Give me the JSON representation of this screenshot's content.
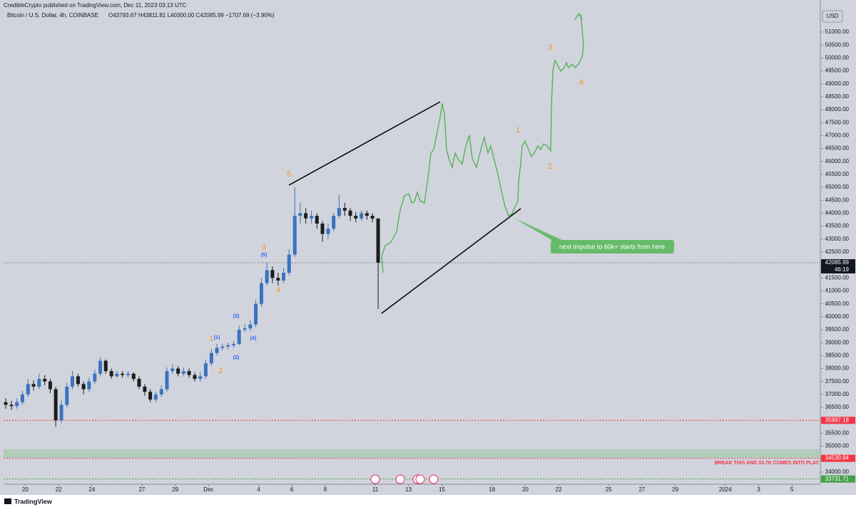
{
  "header": {
    "publisher": "CredibleCrypto published on TradingView.com, Dec 11, 2023 03:13 UTC",
    "symbol": "Bitcoin / U.S. Dollar, 4h, COINBASE",
    "ohlc": "O43793.67 H43811.81 L40300.00 C42085.99 −1707.69 (−3.90%)"
  },
  "footer": {
    "brand": "TradingView"
  },
  "chart_data": {
    "type": "candlestick",
    "currency": "USD",
    "countdown": "46:19",
    "x": [
      18.83,
      19.17,
      19.5,
      19.83,
      20.17,
      20.5,
      20.83,
      21.17,
      21.5,
      21.83,
      22.17,
      22.5,
      22.83,
      23.17,
      23.5,
      23.83,
      24.17,
      24.5,
      24.83,
      25.17,
      25.5,
      25.83,
      26.17,
      26.5,
      26.83,
      27.17,
      27.5,
      27.83,
      28.17,
      28.5,
      28.83,
      29.17,
      29.5,
      29.83,
      30.17,
      30.5,
      30.83,
      31.17,
      31.5,
      31.83,
      32.17,
      32.5,
      32.83,
      33.17,
      33.5,
      33.83,
      34.17,
      34.5,
      34.83,
      35.17,
      35.5,
      35.83,
      36.17,
      36.5,
      36.83,
      37.17,
      37.5,
      37.83,
      38.17,
      38.5,
      38.83,
      39.17,
      39.5,
      39.83,
      40.17,
      40.5,
      40.83,
      41.17
    ],
    "open": [
      36700,
      36600,
      36550,
      36700,
      37000,
      37400,
      37300,
      37600,
      37500,
      37200,
      36000,
      36600,
      37300,
      37700,
      37400,
      37200,
      37500,
      37800,
      38300,
      37900,
      37700,
      37800,
      37750,
      37800,
      37600,
      37300,
      37100,
      36800,
      37000,
      37200,
      37900,
      38000,
      37800,
      37900,
      37750,
      37600,
      37700,
      38200,
      38600,
      38800,
      38850,
      38900,
      38950,
      39500,
      39550,
      39700,
      40500,
      41300,
      41800,
      41500,
      41400,
      41700,
      42400,
      43900,
      44000,
      43800,
      43900,
      43600,
      43200,
      43400,
      43900,
      44200,
      44100,
      43900,
      43800,
      44000,
      43900,
      43793.67
    ],
    "high": [
      36850,
      36750,
      36850,
      37150,
      37600,
      37550,
      37800,
      37750,
      37600,
      37300,
      36800,
      37450,
      37900,
      37800,
      37500,
      37650,
      37950,
      38450,
      38350,
      38000,
      37900,
      37900,
      37900,
      37850,
      37700,
      37400,
      37200,
      37100,
      37350,
      38050,
      38150,
      38100,
      38050,
      38000,
      37850,
      37850,
      38350,
      38750,
      38950,
      38950,
      39000,
      39050,
      39650,
      39700,
      39850,
      40650,
      41500,
      42100,
      41950,
      41700,
      41900,
      42600,
      45000,
      44400,
      44200,
      44100,
      44000,
      43700,
      43600,
      44000,
      44700,
      44400,
      44200,
      44050,
      44100,
      44100,
      44000,
      43811.81
    ],
    "low": [
      36450,
      36400,
      36450,
      36600,
      36900,
      37150,
      37200,
      37350,
      37050,
      35750,
      35900,
      36500,
      37200,
      37300,
      37000,
      37100,
      37400,
      37700,
      37800,
      37600,
      37650,
      37650,
      37650,
      37500,
      37200,
      36950,
      36700,
      36700,
      36900,
      37100,
      37800,
      37700,
      37700,
      37650,
      37500,
      37500,
      37600,
      38100,
      38500,
      38700,
      38750,
      38800,
      38900,
      39400,
      39450,
      39600,
      40400,
      41200,
      41300,
      41200,
      41300,
      41600,
      42300,
      43600,
      43600,
      43600,
      43400,
      42900,
      43000,
      43300,
      43800,
      43900,
      43700,
      43650,
      43700,
      43750,
      43650,
      40300
    ],
    "close": [
      36600,
      36550,
      36700,
      37000,
      37400,
      37300,
      37600,
      37500,
      37200,
      36000,
      36600,
      37300,
      37700,
      37400,
      37200,
      37500,
      37800,
      38300,
      37900,
      37700,
      37800,
      37750,
      37800,
      37600,
      37300,
      37100,
      36800,
      37000,
      37200,
      37900,
      38000,
      37800,
      37900,
      37750,
      37600,
      37700,
      38200,
      38600,
      38800,
      38850,
      38900,
      38950,
      39500,
      39550,
      39700,
      40500,
      41300,
      41800,
      41500,
      41400,
      41700,
      42400,
      43900,
      44000,
      43800,
      43900,
      43600,
      43200,
      43400,
      43900,
      44200,
      44100,
      43900,
      43800,
      44000,
      43900,
      43793.67,
      42085.99
    ],
    "up_color": "#3a72c0",
    "down_color": "#1c1c1c",
    "xlim": [
      18.7,
      67.7
    ],
    "xticks": [
      20,
      22,
      24,
      27,
      29,
      {
        "value": 31,
        "label": "Dec"
      },
      {
        "value": 34,
        "label": "4"
      },
      {
        "value": 36,
        "label": "6"
      },
      {
        "value": 38,
        "label": "8"
      },
      {
        "value": 41,
        "label": "11"
      },
      {
        "value": 43,
        "label": "13"
      },
      {
        "value": 45,
        "label": "15"
      },
      {
        "value": 48,
        "label": "18"
      },
      {
        "value": 50,
        "label": "20"
      },
      {
        "value": 52,
        "label": "22"
      },
      {
        "value": 55,
        "label": "25"
      },
      {
        "value": 57,
        "label": "27"
      },
      {
        "value": 59,
        "label": "29"
      },
      {
        "value": 62,
        "label": "2024"
      },
      {
        "value": 64,
        "label": "3"
      },
      {
        "value": 66,
        "label": "5"
      }
    ],
    "ylim": [
      33530,
      52100
    ],
    "yticks": [
      {
        "value": 34000,
        "label": "34000.00"
      },
      {
        "value": 34500,
        "label": "34500.00"
      },
      {
        "value": 35000,
        "label": "35000.00"
      },
      {
        "value": 35500,
        "label": "35500.00"
      },
      {
        "value": 36000,
        "label": "36000.00"
      },
      {
        "value": 36500,
        "label": "36500.00"
      },
      {
        "value": 37000,
        "label": "37000.00"
      },
      {
        "value": 37500,
        "label": "37500.00"
      },
      {
        "value": 38000,
        "label": "38000.00"
      },
      {
        "value": 38500,
        "label": "38500.00"
      },
      {
        "value": 39000,
        "label": "39000.00"
      },
      {
        "value": 39500,
        "label": "39500.00"
      },
      {
        "value": 40000,
        "label": "40000.00"
      },
      {
        "value": 40500,
        "label": "40500.00"
      },
      {
        "value": 41000,
        "label": "41000.00"
      },
      {
        "value": 41500,
        "label": "41500.00"
      },
      {
        "value": 42000,
        "label": "42000.00"
      },
      {
        "value": 42500,
        "label": "42500.00"
      },
      {
        "value": 43000,
        "label": "43000.00"
      },
      {
        "value": 43500,
        "label": "43500.00"
      },
      {
        "value": 44000,
        "label": "44000.00"
      },
      {
        "value": 44500,
        "label": "44500.00"
      },
      {
        "value": 45000,
        "label": "45000.00"
      },
      {
        "value": 45500,
        "label": "45500.00"
      },
      {
        "value": 46000,
        "label": "46000.00"
      },
      {
        "value": 46500,
        "label": "46500.00"
      },
      {
        "value": 47000,
        "label": "47000.00"
      },
      {
        "value": 47500,
        "label": "47500.00"
      },
      {
        "value": 48000,
        "label": "48000.00"
      },
      {
        "value": 48500,
        "label": "48500.00"
      },
      {
        "value": 49000,
        "label": "49000.00"
      },
      {
        "value": 49500,
        "label": "49500.00"
      },
      {
        "value": 50000,
        "label": "50000.00"
      },
      {
        "value": 50500,
        "label": "50500.00"
      },
      {
        "value": 51000,
        "label": "51000.00"
      }
    ],
    "zone": {
      "values": [
        34550,
        34880
      ],
      "color": "#a9c9b0"
    },
    "levels": [
      {
        "value": 42085.99,
        "color": "#888888"
      },
      {
        "value": 35997.18,
        "color": "#f23645"
      },
      {
        "value": 34530.94,
        "color": "#f23645"
      },
      {
        "value": 33731.71,
        "color": "#43a047"
      }
    ],
    "annotations": [
      "5",
      "3",
      "(5)",
      "4",
      "(3)",
      "(4)",
      "1",
      "(1)",
      "(2)",
      "2",
      "1",
      "2",
      "3",
      "4",
      "next impulse to 60k+ starts from here",
      "BREAK THIS AND 33.7K COMES INTO PLAY"
    ]
  }
}
